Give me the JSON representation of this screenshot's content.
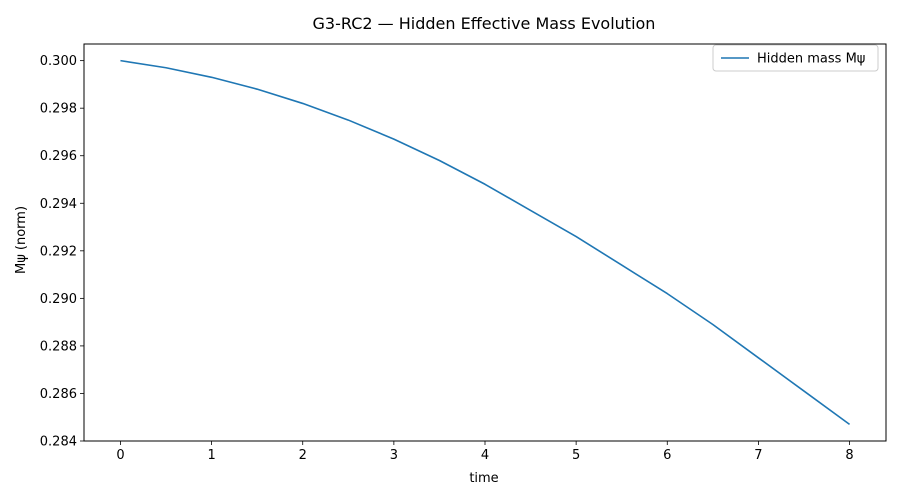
{
  "chart_data": {
    "type": "line",
    "title": "G3-RC2 — Hidden Effective Mass Evolution",
    "xlabel": "time",
    "ylabel": "Mψ (norm)",
    "xlim": [
      -0.4,
      8.4
    ],
    "ylim": [
      0.284,
      0.3007
    ],
    "xticks": [
      0,
      1,
      2,
      3,
      4,
      5,
      6,
      7,
      8
    ],
    "yticks": [
      0.284,
      0.286,
      0.288,
      0.29,
      0.292,
      0.294,
      0.296,
      0.298,
      0.3
    ],
    "ytick_labels": [
      "0.284",
      "0.286",
      "0.288",
      "0.290",
      "0.292",
      "0.294",
      "0.296",
      "0.298",
      "0.300"
    ],
    "grid": false,
    "legend_position": "top-right",
    "series": [
      {
        "name": "Hidden mass Mψ",
        "color": "#1f77b4",
        "x": [
          0,
          0.5,
          1,
          1.5,
          2,
          2.5,
          3,
          3.5,
          4,
          4.5,
          5,
          5.5,
          6,
          6.5,
          7,
          7.5,
          8
        ],
        "y": [
          0.3,
          0.2997,
          0.2993,
          0.2988,
          0.2982,
          0.2975,
          0.2967,
          0.2958,
          0.2948,
          0.2937,
          0.2926,
          0.2914,
          0.2902,
          0.2889,
          0.2875,
          0.2861,
          0.2847
        ]
      }
    ]
  }
}
